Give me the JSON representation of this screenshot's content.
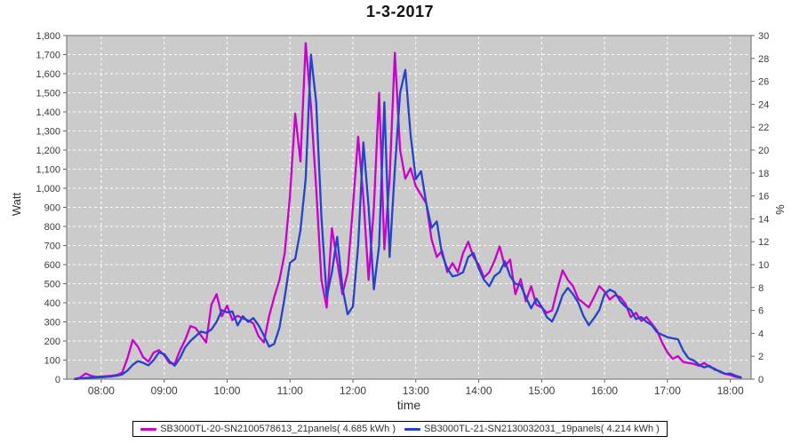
{
  "title": "1-3-2017",
  "axes": {
    "left": {
      "label": "Watt",
      "ticks": [
        "0",
        "100",
        "200",
        "300",
        "400",
        "500",
        "600",
        "700",
        "800",
        "900",
        "1,000",
        "1,100",
        "1,200",
        "1,300",
        "1,400",
        "1,500",
        "1,600",
        "1,700",
        "1,800"
      ]
    },
    "right": {
      "label": "%",
      "ticks": [
        "0",
        "2",
        "4",
        "6",
        "8",
        "10",
        "12",
        "14",
        "16",
        "18",
        "20",
        "22",
        "24",
        "26",
        "28",
        "30"
      ]
    },
    "x": {
      "label": "time",
      "ticks": [
        "08:00",
        "09:00",
        "10:00",
        "11:00",
        "12:00",
        "13:00",
        "14:00",
        "15:00",
        "16:00",
        "17:00",
        "18:00"
      ]
    }
  },
  "legend": [
    {
      "label": "SB3000TL-20-SN2100578613_21panels( 4.685 kWh )",
      "color": "#CC00CC"
    },
    {
      "label": "SB3000TL-21-SN2130032031_19panels( 4.214 kWh )",
      "color": "#2442CB"
    }
  ],
  "colors": {
    "plot_bg": "#CBCBCB",
    "grid": "#FFFFFF",
    "plot_border": "#6E6E6E",
    "tick": "#666666",
    "tick_text": "#3B3B3B",
    "series1": "#CC00CC",
    "series2": "#2442CB"
  },
  "chart_data": {
    "type": "line",
    "title": "1-3-2017",
    "xlabel": "time",
    "ylabel_left": "Watt",
    "ylabel_right": "%",
    "ylim_left": [
      0,
      1800
    ],
    "ylim_right": [
      0,
      30
    ],
    "x_range_hours": [
      7.45,
      18.33
    ],
    "x_tick_hours": [
      8,
      9,
      10,
      11,
      12,
      13,
      14,
      15,
      16,
      17,
      18
    ],
    "x_unit": "minutes_since_midnight",
    "y_unit": "watt",
    "series": [
      {
        "name": "SB3000TL-20-SN2100578613_21panels",
        "energy_kwh": 4.685,
        "color": "#CC00CC",
        "points": [
          [
            455,
            2
          ],
          [
            460,
            8
          ],
          [
            465,
            30
          ],
          [
            470,
            18
          ],
          [
            475,
            12
          ],
          [
            480,
            14
          ],
          [
            485,
            16
          ],
          [
            490,
            18
          ],
          [
            495,
            22
          ],
          [
            500,
            35
          ],
          [
            505,
            110
          ],
          [
            510,
            205
          ],
          [
            515,
            170
          ],
          [
            520,
            115
          ],
          [
            525,
            92
          ],
          [
            530,
            140
          ],
          [
            535,
            152
          ],
          [
            540,
            125
          ],
          [
            545,
            85
          ],
          [
            550,
            80
          ],
          [
            555,
            150
          ],
          [
            560,
            205
          ],
          [
            565,
            278
          ],
          [
            570,
            268
          ],
          [
            575,
            230
          ],
          [
            580,
            192
          ],
          [
            585,
            390
          ],
          [
            590,
            445
          ],
          [
            595,
            330
          ],
          [
            600,
            385
          ],
          [
            605,
            310
          ],
          [
            610,
            332
          ],
          [
            615,
            318
          ],
          [
            620,
            308
          ],
          [
            625,
            292
          ],
          [
            630,
            225
          ],
          [
            635,
            192
          ],
          [
            640,
            330
          ],
          [
            645,
            430
          ],
          [
            650,
            520
          ],
          [
            655,
            660
          ],
          [
            660,
            960
          ],
          [
            665,
            1390
          ],
          [
            670,
            1140
          ],
          [
            675,
            1760
          ],
          [
            680,
            1430
          ],
          [
            685,
            1000
          ],
          [
            690,
            520
          ],
          [
            695,
            375
          ],
          [
            700,
            790
          ],
          [
            705,
            620
          ],
          [
            710,
            445
          ],
          [
            715,
            560
          ],
          [
            720,
            900
          ],
          [
            725,
            1270
          ],
          [
            730,
            950
          ],
          [
            735,
            520
          ],
          [
            740,
            900
          ],
          [
            745,
            1500
          ],
          [
            750,
            680
          ],
          [
            755,
            1050
          ],
          [
            760,
            1710
          ],
          [
            765,
            1200
          ],
          [
            770,
            1050
          ],
          [
            775,
            1105
          ],
          [
            780,
            1010
          ],
          [
            785,
            965
          ],
          [
            790,
            920
          ],
          [
            795,
            733
          ],
          [
            800,
            640
          ],
          [
            805,
            672
          ],
          [
            810,
            561
          ],
          [
            815,
            608
          ],
          [
            820,
            560
          ],
          [
            825,
            660
          ],
          [
            830,
            720
          ],
          [
            835,
            640
          ],
          [
            840,
            600
          ],
          [
            845,
            533
          ],
          [
            850,
            560
          ],
          [
            855,
            620
          ],
          [
            860,
            696
          ],
          [
            865,
            590
          ],
          [
            870,
            626
          ],
          [
            875,
            445
          ],
          [
            880,
            524
          ],
          [
            885,
            408
          ],
          [
            890,
            487
          ],
          [
            895,
            390
          ],
          [
            900,
            376
          ],
          [
            905,
            348
          ],
          [
            910,
            360
          ],
          [
            915,
            470
          ],
          [
            920,
            570
          ],
          [
            925,
            520
          ],
          [
            930,
            487
          ],
          [
            935,
            420
          ],
          [
            940,
            399
          ],
          [
            945,
            376
          ],
          [
            950,
            430
          ],
          [
            955,
            487
          ],
          [
            960,
            460
          ],
          [
            965,
            417
          ],
          [
            970,
            440
          ],
          [
            975,
            430
          ],
          [
            980,
            394
          ],
          [
            985,
            325
          ],
          [
            990,
            348
          ],
          [
            995,
            305
          ],
          [
            1000,
            325
          ],
          [
            1005,
            290
          ],
          [
            1010,
            255
          ],
          [
            1015,
            190
          ],
          [
            1020,
            140
          ],
          [
            1025,
            107
          ],
          [
            1030,
            121
          ],
          [
            1035,
            90
          ],
          [
            1040,
            85
          ],
          [
            1045,
            80
          ],
          [
            1050,
            70
          ],
          [
            1055,
            85
          ],
          [
            1060,
            65
          ],
          [
            1065,
            55
          ],
          [
            1070,
            38
          ],
          [
            1075,
            28
          ],
          [
            1080,
            22
          ],
          [
            1085,
            12
          ],
          [
            1090,
            8
          ]
        ]
      },
      {
        "name": "SB3000TL-21-SN2130032031_19panels",
        "energy_kwh": 4.214,
        "color": "#2442CB",
        "points": [
          [
            455,
            0
          ],
          [
            460,
            3
          ],
          [
            465,
            6
          ],
          [
            470,
            8
          ],
          [
            475,
            9
          ],
          [
            480,
            10
          ],
          [
            485,
            12
          ],
          [
            490,
            15
          ],
          [
            495,
            18
          ],
          [
            500,
            25
          ],
          [
            505,
            45
          ],
          [
            510,
            75
          ],
          [
            515,
            95
          ],
          [
            520,
            85
          ],
          [
            525,
            72
          ],
          [
            530,
            100
          ],
          [
            535,
            140
          ],
          [
            540,
            132
          ],
          [
            545,
            95
          ],
          [
            550,
            70
          ],
          [
            555,
            110
          ],
          [
            560,
            167
          ],
          [
            565,
            200
          ],
          [
            570,
            225
          ],
          [
            575,
            250
          ],
          [
            580,
            242
          ],
          [
            585,
            260
          ],
          [
            590,
            300
          ],
          [
            595,
            362
          ],
          [
            600,
            350
          ],
          [
            605,
            355
          ],
          [
            610,
            282
          ],
          [
            615,
            330
          ],
          [
            620,
            300
          ],
          [
            625,
            320
          ],
          [
            630,
            282
          ],
          [
            635,
            230
          ],
          [
            640,
            170
          ],
          [
            645,
            185
          ],
          [
            650,
            270
          ],
          [
            655,
            430
          ],
          [
            660,
            610
          ],
          [
            665,
            630
          ],
          [
            670,
            780
          ],
          [
            675,
            1050
          ],
          [
            680,
            1700
          ],
          [
            685,
            1450
          ],
          [
            690,
            850
          ],
          [
            695,
            430
          ],
          [
            700,
            560
          ],
          [
            705,
            745
          ],
          [
            710,
            480
          ],
          [
            715,
            340
          ],
          [
            720,
            380
          ],
          [
            725,
            700
          ],
          [
            730,
            1240
          ],
          [
            735,
            900
          ],
          [
            740,
            470
          ],
          [
            745,
            700
          ],
          [
            750,
            1450
          ],
          [
            755,
            640
          ],
          [
            760,
            1100
          ],
          [
            765,
            1500
          ],
          [
            770,
            1620
          ],
          [
            775,
            1280
          ],
          [
            780,
            1048
          ],
          [
            785,
            1090
          ],
          [
            790,
            919
          ],
          [
            795,
            793
          ],
          [
            800,
            826
          ],
          [
            805,
            654
          ],
          [
            810,
            580
          ],
          [
            815,
            538
          ],
          [
            820,
            545
          ],
          [
            825,
            560
          ],
          [
            830,
            640
          ],
          [
            835,
            660
          ],
          [
            840,
            580
          ],
          [
            845,
            520
          ],
          [
            850,
            487
          ],
          [
            855,
            540
          ],
          [
            860,
            560
          ],
          [
            865,
            617
          ],
          [
            870,
            540
          ],
          [
            875,
            500
          ],
          [
            880,
            492
          ],
          [
            885,
            430
          ],
          [
            890,
            371
          ],
          [
            895,
            422
          ],
          [
            900,
            380
          ],
          [
            905,
            325
          ],
          [
            910,
            302
          ],
          [
            915,
            360
          ],
          [
            920,
            440
          ],
          [
            925,
            478
          ],
          [
            930,
            445
          ],
          [
            935,
            400
          ],
          [
            940,
            330
          ],
          [
            945,
            283
          ],
          [
            950,
            320
          ],
          [
            955,
            362
          ],
          [
            960,
            445
          ],
          [
            965,
            469
          ],
          [
            970,
            455
          ],
          [
            975,
            408
          ],
          [
            980,
            380
          ],
          [
            985,
            362
          ],
          [
            990,
            315
          ],
          [
            995,
            325
          ],
          [
            1000,
            300
          ],
          [
            1005,
            283
          ],
          [
            1010,
            246
          ],
          [
            1015,
            232
          ],
          [
            1020,
            220
          ],
          [
            1025,
            214
          ],
          [
            1030,
            209
          ],
          [
            1035,
            150
          ],
          [
            1040,
            110
          ],
          [
            1045,
            98
          ],
          [
            1050,
            75
          ],
          [
            1055,
            62
          ],
          [
            1060,
            70
          ],
          [
            1065,
            50
          ],
          [
            1070,
            42
          ],
          [
            1075,
            28
          ],
          [
            1080,
            30
          ],
          [
            1085,
            18
          ],
          [
            1090,
            10
          ]
        ]
      }
    ]
  }
}
